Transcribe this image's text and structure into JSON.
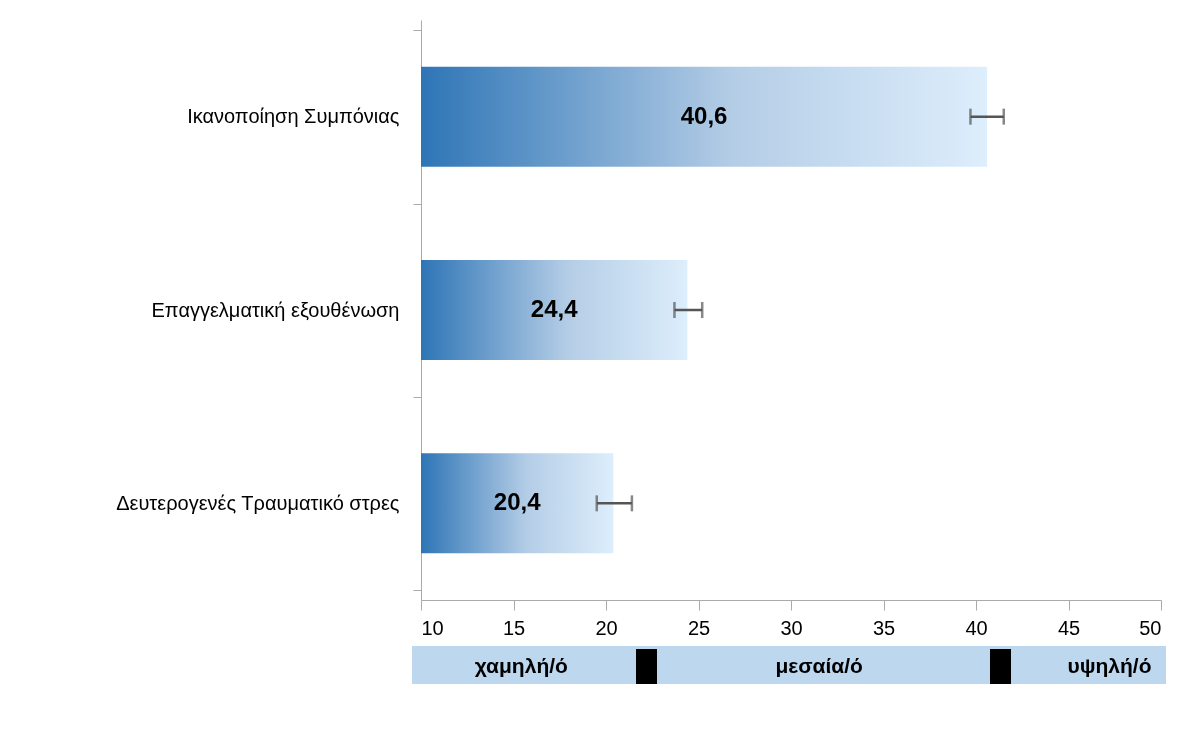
{
  "chart_data": {
    "type": "bar",
    "orientation": "horizontal",
    "categories": [
      "Ικανοποίηση Συμπόνιας",
      "Επαγγελματική εξουθένωση",
      "Δευτερογενές Τραυματικό στρες"
    ],
    "values": [
      40.6,
      24.4,
      20.4
    ],
    "value_labels": [
      "40,6",
      "24,4",
      "20,4"
    ],
    "errors": [
      [
        39.7,
        41.5
      ],
      [
        23.7,
        25.2
      ],
      [
        19.5,
        21.4
      ]
    ],
    "color": "#2e75b6",
    "xlim": [
      10,
      50
    ],
    "xticks": [
      10,
      15,
      20,
      25,
      30,
      35,
      40,
      45,
      50
    ],
    "grid": false,
    "annotations": [
      "χαμηλή/ό",
      "μεσαία/ό",
      "υψηλή/ό"
    ]
  }
}
